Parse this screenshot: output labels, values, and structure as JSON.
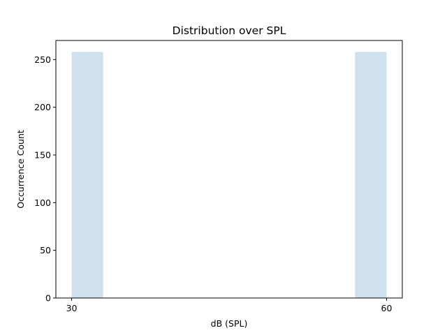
{
  "chart_data": {
    "type": "bar",
    "title": "Distribution over SPL",
    "xlabel": "dB (SPL)",
    "ylabel": "Occurrence Count",
    "xlim": [
      28.5,
      61.5
    ],
    "ylim": [
      0,
      270
    ],
    "x_ticks": [
      30,
      60
    ],
    "y_ticks": [
      0,
      50,
      100,
      150,
      200,
      250
    ],
    "bins": [
      {
        "x0": 30,
        "x1": 33,
        "value": 258
      },
      {
        "x0": 33,
        "x1": 36,
        "value": 0
      },
      {
        "x0": 36,
        "x1": 39,
        "value": 0
      },
      {
        "x0": 39,
        "x1": 42,
        "value": 0
      },
      {
        "x0": 42,
        "x1": 45,
        "value": 0
      },
      {
        "x0": 45,
        "x1": 48,
        "value": 0
      },
      {
        "x0": 48,
        "x1": 51,
        "value": 0
      },
      {
        "x0": 51,
        "x1": 54,
        "value": 0
      },
      {
        "x0": 54,
        "x1": 57,
        "value": 0
      },
      {
        "x0": 57,
        "x1": 60,
        "value": 258
      }
    ],
    "bar_color": "#cfe1ed",
    "grid": false,
    "legend": "none"
  }
}
